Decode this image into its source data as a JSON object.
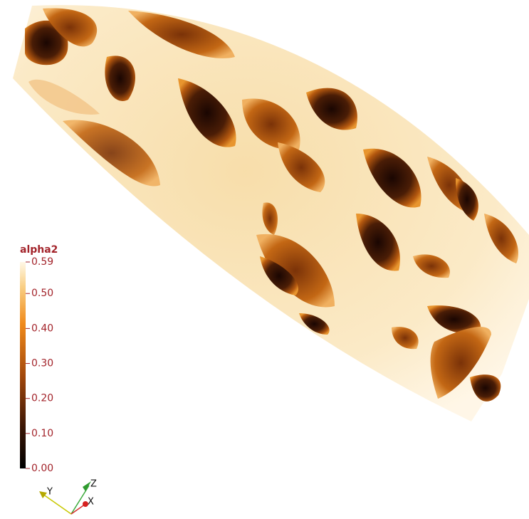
{
  "color_legend": {
    "title": "alpha2",
    "range": [
      0,
      0.59
    ],
    "ticks": [
      0.59,
      {
        "value": 0.5,
        "label": "0.50"
      },
      {
        "value": 0.4,
        "label": "0.40"
      },
      {
        "value": 0.3,
        "label": "0.30"
      },
      {
        "value": 0.2,
        "label": "0.20"
      },
      {
        "value": 0.1,
        "label": "0.10"
      },
      {
        "value": 0,
        "label": "0.00"
      }
    ]
  },
  "orientation_axes": {
    "labels": [
      "Y",
      "Z",
      "X"
    ]
  }
}
